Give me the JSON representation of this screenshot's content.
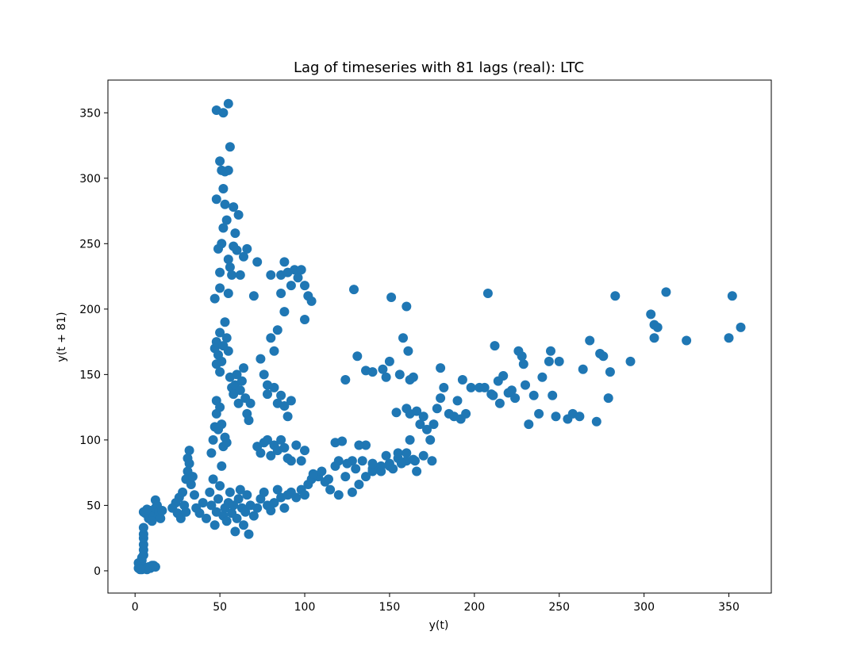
{
  "chart_data": {
    "type": "scatter",
    "title": "Lag of timeseries with 81 lags (real):  LTC",
    "xlabel": "y(t)",
    "ylabel": "y(t + 81)",
    "xlim": [
      -16,
      375
    ],
    "ylim": [
      -17,
      375
    ],
    "xticks": [
      0,
      50,
      100,
      150,
      200,
      250,
      300,
      350
    ],
    "yticks": [
      0,
      50,
      100,
      150,
      200,
      250,
      300,
      350
    ],
    "grid": false,
    "legend": "none",
    "marker_color": "#1f77b4",
    "points": [
      [
        2,
        2
      ],
      [
        3,
        4
      ],
      [
        2,
        6
      ],
      [
        4,
        1
      ],
      [
        5,
        3
      ],
      [
        3,
        2
      ],
      [
        6,
        2
      ],
      [
        7,
        1
      ],
      [
        8,
        3
      ],
      [
        10,
        4
      ],
      [
        12,
        3
      ],
      [
        4,
        8
      ],
      [
        5,
        12
      ],
      [
        5,
        16
      ],
      [
        5,
        20
      ],
      [
        5,
        25
      ],
      [
        5,
        28
      ],
      [
        5,
        33
      ],
      [
        5,
        45
      ],
      [
        6,
        44
      ],
      [
        4,
        10
      ],
      [
        3,
        1
      ],
      [
        9,
        2
      ],
      [
        11,
        4
      ],
      [
        8,
        40
      ],
      [
        9,
        46
      ],
      [
        10,
        44
      ],
      [
        11,
        42
      ],
      [
        12,
        48
      ],
      [
        12,
        54
      ],
      [
        13,
        50
      ],
      [
        14,
        45
      ],
      [
        15,
        40
      ],
      [
        16,
        46
      ],
      [
        10,
        38
      ],
      [
        7,
        47
      ],
      [
        22,
        48
      ],
      [
        24,
        52
      ],
      [
        25,
        44
      ],
      [
        26,
        56
      ],
      [
        27,
        40
      ],
      [
        28,
        60
      ],
      [
        29,
        50
      ],
      [
        30,
        45
      ],
      [
        30,
        70
      ],
      [
        31,
        76
      ],
      [
        31,
        86
      ],
      [
        32,
        92
      ],
      [
        32,
        82
      ],
      [
        33,
        66
      ],
      [
        34,
        72
      ],
      [
        35,
        58
      ],
      [
        36,
        48
      ],
      [
        38,
        44
      ],
      [
        40,
        52
      ],
      [
        42,
        40
      ],
      [
        44,
        60
      ],
      [
        45,
        50
      ],
      [
        46,
        70
      ],
      [
        47,
        35
      ],
      [
        48,
        45
      ],
      [
        49,
        55
      ],
      [
        50,
        65
      ],
      [
        51,
        80
      ],
      [
        52,
        42
      ],
      [
        53,
        48
      ],
      [
        54,
        38
      ],
      [
        55,
        52
      ],
      [
        56,
        60
      ],
      [
        57,
        44
      ],
      [
        58,
        50
      ],
      [
        59,
        30
      ],
      [
        60,
        40
      ],
      [
        61,
        55
      ],
      [
        62,
        62
      ],
      [
        63,
        48
      ],
      [
        64,
        35
      ],
      [
        65,
        45
      ],
      [
        66,
        58
      ],
      [
        67,
        28
      ],
      [
        68,
        50
      ],
      [
        70,
        42
      ],
      [
        72,
        48
      ],
      [
        74,
        55
      ],
      [
        76,
        60
      ],
      [
        78,
        50
      ],
      [
        80,
        46
      ],
      [
        82,
        52
      ],
      [
        84,
        62
      ],
      [
        86,
        56
      ],
      [
        88,
        48
      ],
      [
        90,
        58
      ],
      [
        92,
        60
      ],
      [
        95,
        56
      ],
      [
        98,
        62
      ],
      [
        100,
        58
      ],
      [
        102,
        66
      ],
      [
        104,
        70
      ],
      [
        108,
        72
      ],
      [
        112,
        68
      ],
      [
        115,
        62
      ],
      [
        120,
        58
      ],
      [
        124,
        72
      ],
      [
        128,
        60
      ],
      [
        132,
        66
      ],
      [
        136,
        72
      ],
      [
        140,
        76
      ],
      [
        145,
        80
      ],
      [
        150,
        82
      ],
      [
        155,
        86
      ],
      [
        160,
        84
      ],
      [
        165,
        84
      ],
      [
        170,
        88
      ],
      [
        175,
        84
      ],
      [
        45,
        90
      ],
      [
        46,
        100
      ],
      [
        47,
        110
      ],
      [
        48,
        120
      ],
      [
        48,
        130
      ],
      [
        49,
        108
      ],
      [
        50,
        125
      ],
      [
        51,
        112
      ],
      [
        52,
        95
      ],
      [
        53,
        102
      ],
      [
        54,
        98
      ],
      [
        47,
        170
      ],
      [
        48,
        175
      ],
      [
        48,
        158
      ],
      [
        49,
        165
      ],
      [
        50,
        182
      ],
      [
        50,
        152
      ],
      [
        51,
        160
      ],
      [
        52,
        172
      ],
      [
        53,
        190
      ],
      [
        54,
        178
      ],
      [
        55,
        168
      ],
      [
        56,
        148
      ],
      [
        57,
        140
      ],
      [
        58,
        135
      ],
      [
        59,
        142
      ],
      [
        60,
        150
      ],
      [
        61,
        128
      ],
      [
        62,
        138
      ],
      [
        63,
        145
      ],
      [
        64,
        155
      ],
      [
        65,
        132
      ],
      [
        66,
        120
      ],
      [
        67,
        115
      ],
      [
        68,
        128
      ],
      [
        47,
        208
      ],
      [
        49,
        246
      ],
      [
        50,
        228
      ],
      [
        50,
        216
      ],
      [
        51,
        250
      ],
      [
        52,
        262
      ],
      [
        53,
        280
      ],
      [
        54,
        268
      ],
      [
        55,
        238
      ],
      [
        55,
        212
      ],
      [
        56,
        232
      ],
      [
        57,
        226
      ],
      [
        58,
        248
      ],
      [
        59,
        258
      ],
      [
        60,
        245
      ],
      [
        61,
        272
      ],
      [
        62,
        226
      ],
      [
        64,
        240
      ],
      [
        66,
        246
      ],
      [
        48,
        284
      ],
      [
        50,
        313
      ],
      [
        51,
        306
      ],
      [
        52,
        292
      ],
      [
        53,
        305
      ],
      [
        55,
        306
      ],
      [
        56,
        324
      ],
      [
        58,
        278
      ],
      [
        48,
        352
      ],
      [
        52,
        350
      ],
      [
        55,
        357
      ],
      [
        70,
        210
      ],
      [
        72,
        236
      ],
      [
        74,
        162
      ],
      [
        76,
        150
      ],
      [
        78,
        142
      ],
      [
        80,
        178
      ],
      [
        82,
        168
      ],
      [
        84,
        184
      ],
      [
        86,
        226
      ],
      [
        88,
        236
      ],
      [
        90,
        228
      ],
      [
        92,
        218
      ],
      [
        94,
        230
      ],
      [
        96,
        224
      ],
      [
        98,
        230
      ],
      [
        100,
        218
      ],
      [
        102,
        210
      ],
      [
        104,
        206
      ],
      [
        100,
        192
      ],
      [
        88,
        198
      ],
      [
        86,
        212
      ],
      [
        80,
        226
      ],
      [
        78,
        135
      ],
      [
        82,
        140
      ],
      [
        84,
        128
      ],
      [
        86,
        134
      ],
      [
        88,
        126
      ],
      [
        90,
        118
      ],
      [
        92,
        130
      ],
      [
        72,
        95
      ],
      [
        74,
        90
      ],
      [
        76,
        98
      ],
      [
        78,
        100
      ],
      [
        80,
        88
      ],
      [
        82,
        96
      ],
      [
        84,
        92
      ],
      [
        86,
        100
      ],
      [
        88,
        94
      ],
      [
        90,
        86
      ],
      [
        92,
        84
      ],
      [
        95,
        96
      ],
      [
        98,
        84
      ],
      [
        100,
        92
      ],
      [
        105,
        74
      ],
      [
        110,
        76
      ],
      [
        114,
        70
      ],
      [
        118,
        80
      ],
      [
        120,
        84
      ],
      [
        125,
        82
      ],
      [
        130,
        78
      ],
      [
        134,
        84
      ],
      [
        136,
        96
      ],
      [
        140,
        78
      ],
      [
        145,
        76
      ],
      [
        148,
        88
      ],
      [
        150,
        80
      ],
      [
        152,
        78
      ],
      [
        155,
        90
      ],
      [
        157,
        82
      ],
      [
        160,
        90
      ],
      [
        162,
        100
      ],
      [
        164,
        85
      ],
      [
        166,
        76
      ],
      [
        118,
        98
      ],
      [
        122,
        99
      ],
      [
        132,
        96
      ],
      [
        128,
        84
      ],
      [
        140,
        82
      ],
      [
        124,
        146
      ],
      [
        129,
        215
      ],
      [
        131,
        164
      ],
      [
        136,
        153
      ],
      [
        140,
        152
      ],
      [
        146,
        154
      ],
      [
        148,
        148
      ],
      [
        150,
        160
      ],
      [
        151,
        209
      ],
      [
        154,
        121
      ],
      [
        156,
        150
      ],
      [
        158,
        178
      ],
      [
        160,
        202
      ],
      [
        161,
        168
      ],
      [
        162,
        146
      ],
      [
        164,
        148
      ],
      [
        160,
        124
      ],
      [
        162,
        120
      ],
      [
        166,
        122
      ],
      [
        168,
        112
      ],
      [
        170,
        118
      ],
      [
        172,
        108
      ],
      [
        174,
        100
      ],
      [
        176,
        112
      ],
      [
        178,
        124
      ],
      [
        180,
        132
      ],
      [
        180,
        155
      ],
      [
        182,
        140
      ],
      [
        185,
        120
      ],
      [
        188,
        118
      ],
      [
        190,
        130
      ],
      [
        192,
        116
      ],
      [
        193,
        146
      ],
      [
        195,
        120
      ],
      [
        198,
        140
      ],
      [
        203,
        140
      ],
      [
        206,
        140
      ],
      [
        208,
        212
      ],
      [
        210,
        135
      ],
      [
        211,
        134
      ],
      [
        212,
        172
      ],
      [
        214,
        145
      ],
      [
        215,
        128
      ],
      [
        217,
        149
      ],
      [
        220,
        136
      ],
      [
        222,
        138
      ],
      [
        224,
        132
      ],
      [
        226,
        168
      ],
      [
        228,
        164
      ],
      [
        229,
        158
      ],
      [
        230,
        142
      ],
      [
        232,
        112
      ],
      [
        235,
        134
      ],
      [
        238,
        120
      ],
      [
        240,
        148
      ],
      [
        244,
        160
      ],
      [
        245,
        168
      ],
      [
        246,
        134
      ],
      [
        248,
        118
      ],
      [
        250,
        160
      ],
      [
        255,
        116
      ],
      [
        258,
        120
      ],
      [
        262,
        118
      ],
      [
        264,
        154
      ],
      [
        268,
        176
      ],
      [
        272,
        114
      ],
      [
        274,
        166
      ],
      [
        276,
        164
      ],
      [
        279,
        132
      ],
      [
        280,
        152
      ],
      [
        283,
        210
      ],
      [
        292,
        160
      ],
      [
        304,
        196
      ],
      [
        306,
        188
      ],
      [
        308,
        186
      ],
      [
        306,
        178
      ],
      [
        313,
        213
      ],
      [
        325,
        176
      ],
      [
        350,
        178
      ],
      [
        352,
        210
      ],
      [
        357,
        186
      ]
    ]
  }
}
